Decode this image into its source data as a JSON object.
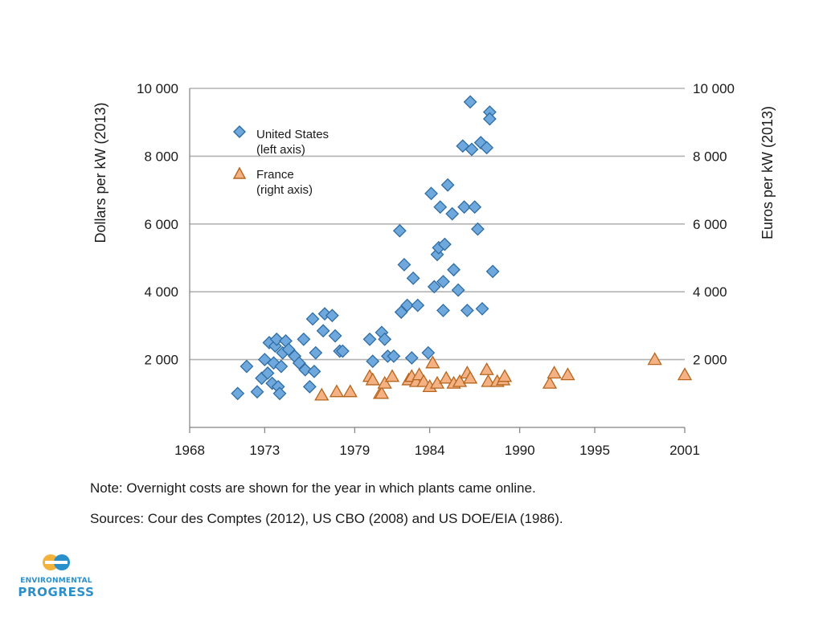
{
  "chart_data": {
    "type": "scatter",
    "xlabel": "",
    "ylabel_left": "Dollars per kW (2013)",
    "ylabel_right": "Euros per kW (2013)",
    "xlim": [
      1968,
      2001
    ],
    "ylim": [
      0,
      10000
    ],
    "x_ticks": [
      1968,
      1973,
      1979,
      1984,
      1990,
      1995,
      2001
    ],
    "y_ticks_left": [
      "2 000",
      "4 000",
      "6 000",
      "8 000",
      "10 000"
    ],
    "y_ticks_right": [
      "2 000",
      "4 000",
      "6 000",
      "8 000",
      "10 000"
    ],
    "legend": [
      {
        "label_line1": "United States",
        "label_line2": "(left axis)"
      },
      {
        "label_line1": "France",
        "label_line2": "(right axis)"
      }
    ],
    "series": [
      {
        "name": "United States (left axis)",
        "marker": "diamond",
        "color": "#6fa8dc",
        "points": [
          [
            1971.2,
            1000
          ],
          [
            1971.8,
            1800
          ],
          [
            1972.5,
            1050
          ],
          [
            1972.8,
            1450
          ],
          [
            1973.0,
            2000
          ],
          [
            1973.2,
            1600
          ],
          [
            1973.3,
            2500
          ],
          [
            1973.5,
            1300
          ],
          [
            1973.6,
            1900
          ],
          [
            1973.7,
            2400
          ],
          [
            1973.8,
            2600
          ],
          [
            1973.9,
            1200
          ],
          [
            1974.0,
            1000
          ],
          [
            1974.1,
            1800
          ],
          [
            1974.2,
            2200
          ],
          [
            1974.4,
            2550
          ],
          [
            1974.6,
            2300
          ],
          [
            1975.0,
            2100
          ],
          [
            1975.3,
            1900
          ],
          [
            1975.6,
            2600
          ],
          [
            1975.7,
            1700
          ],
          [
            1976.0,
            1200
          ],
          [
            1976.2,
            3200
          ],
          [
            1976.3,
            1650
          ],
          [
            1976.4,
            2200
          ],
          [
            1976.9,
            2850
          ],
          [
            1977.0,
            3350
          ],
          [
            1977.5,
            3300
          ],
          [
            1977.7,
            2700
          ],
          [
            1978.0,
            2250
          ],
          [
            1978.2,
            2250
          ],
          [
            1980.0,
            2600
          ],
          [
            1980.2,
            1950
          ],
          [
            1980.8,
            2800
          ],
          [
            1981.0,
            2600
          ],
          [
            1981.2,
            2100
          ],
          [
            1981.6,
            2100
          ],
          [
            1982.0,
            5800
          ],
          [
            1982.1,
            3400
          ],
          [
            1982.3,
            4800
          ],
          [
            1982.5,
            3600
          ],
          [
            1982.8,
            2050
          ],
          [
            1982.9,
            4400
          ],
          [
            1983.2,
            3600
          ],
          [
            1983.9,
            2200
          ],
          [
            1984.1,
            6900
          ],
          [
            1984.3,
            4150
          ],
          [
            1984.5,
            5100
          ],
          [
            1984.6,
            5300
          ],
          [
            1984.7,
            6500
          ],
          [
            1984.9,
            3450
          ],
          [
            1984.9,
            4300
          ],
          [
            1985.0,
            5400
          ],
          [
            1985.2,
            7150
          ],
          [
            1985.5,
            6300
          ],
          [
            1985.6,
            4650
          ],
          [
            1985.9,
            4050
          ],
          [
            1986.2,
            8300
          ],
          [
            1986.3,
            6500
          ],
          [
            1986.5,
            3450
          ],
          [
            1986.7,
            9600
          ],
          [
            1986.8,
            8200
          ],
          [
            1987.0,
            6500
          ],
          [
            1987.2,
            5850
          ],
          [
            1987.4,
            8400
          ],
          [
            1987.5,
            3500
          ],
          [
            1987.8,
            8250
          ],
          [
            1988.0,
            9300
          ],
          [
            1988.0,
            9100
          ],
          [
            1988.2,
            4600
          ]
        ]
      },
      {
        "name": "France (right axis)",
        "marker": "triangle",
        "color": "#f4b183",
        "points": [
          [
            1976.8,
            950
          ],
          [
            1977.8,
            1050
          ],
          [
            1978.7,
            1050
          ],
          [
            1980.0,
            1500
          ],
          [
            1980.2,
            1400
          ],
          [
            1980.7,
            1000
          ],
          [
            1980.8,
            1000
          ],
          [
            1981.0,
            1300
          ],
          [
            1981.5,
            1500
          ],
          [
            1982.6,
            1400
          ],
          [
            1982.8,
            1500
          ],
          [
            1983.1,
            1350
          ],
          [
            1983.3,
            1550
          ],
          [
            1983.6,
            1350
          ],
          [
            1984.0,
            1200
          ],
          [
            1984.2,
            1900
          ],
          [
            1984.5,
            1300
          ],
          [
            1985.1,
            1450
          ],
          [
            1985.6,
            1300
          ],
          [
            1986.0,
            1350
          ],
          [
            1986.5,
            1600
          ],
          [
            1986.7,
            1450
          ],
          [
            1987.8,
            1700
          ],
          [
            1987.9,
            1350
          ],
          [
            1988.5,
            1350
          ],
          [
            1988.9,
            1400
          ],
          [
            1989.0,
            1500
          ],
          [
            1992.0,
            1300
          ],
          [
            1992.3,
            1600
          ],
          [
            1993.2,
            1550
          ],
          [
            1999.0,
            2000
          ],
          [
            2001.0,
            1550
          ]
        ]
      }
    ]
  },
  "notes": {
    "note": "Note: Overnight costs are shown for the year in which plants came online.",
    "sources": "Sources: Cour des Comptes (2012), US CBO (2008) and US DOE/EIA (1986)."
  },
  "logo": {
    "word1": "ENVIRONMENTAL",
    "word2": "PROGRESS",
    "monogram": "ep"
  }
}
